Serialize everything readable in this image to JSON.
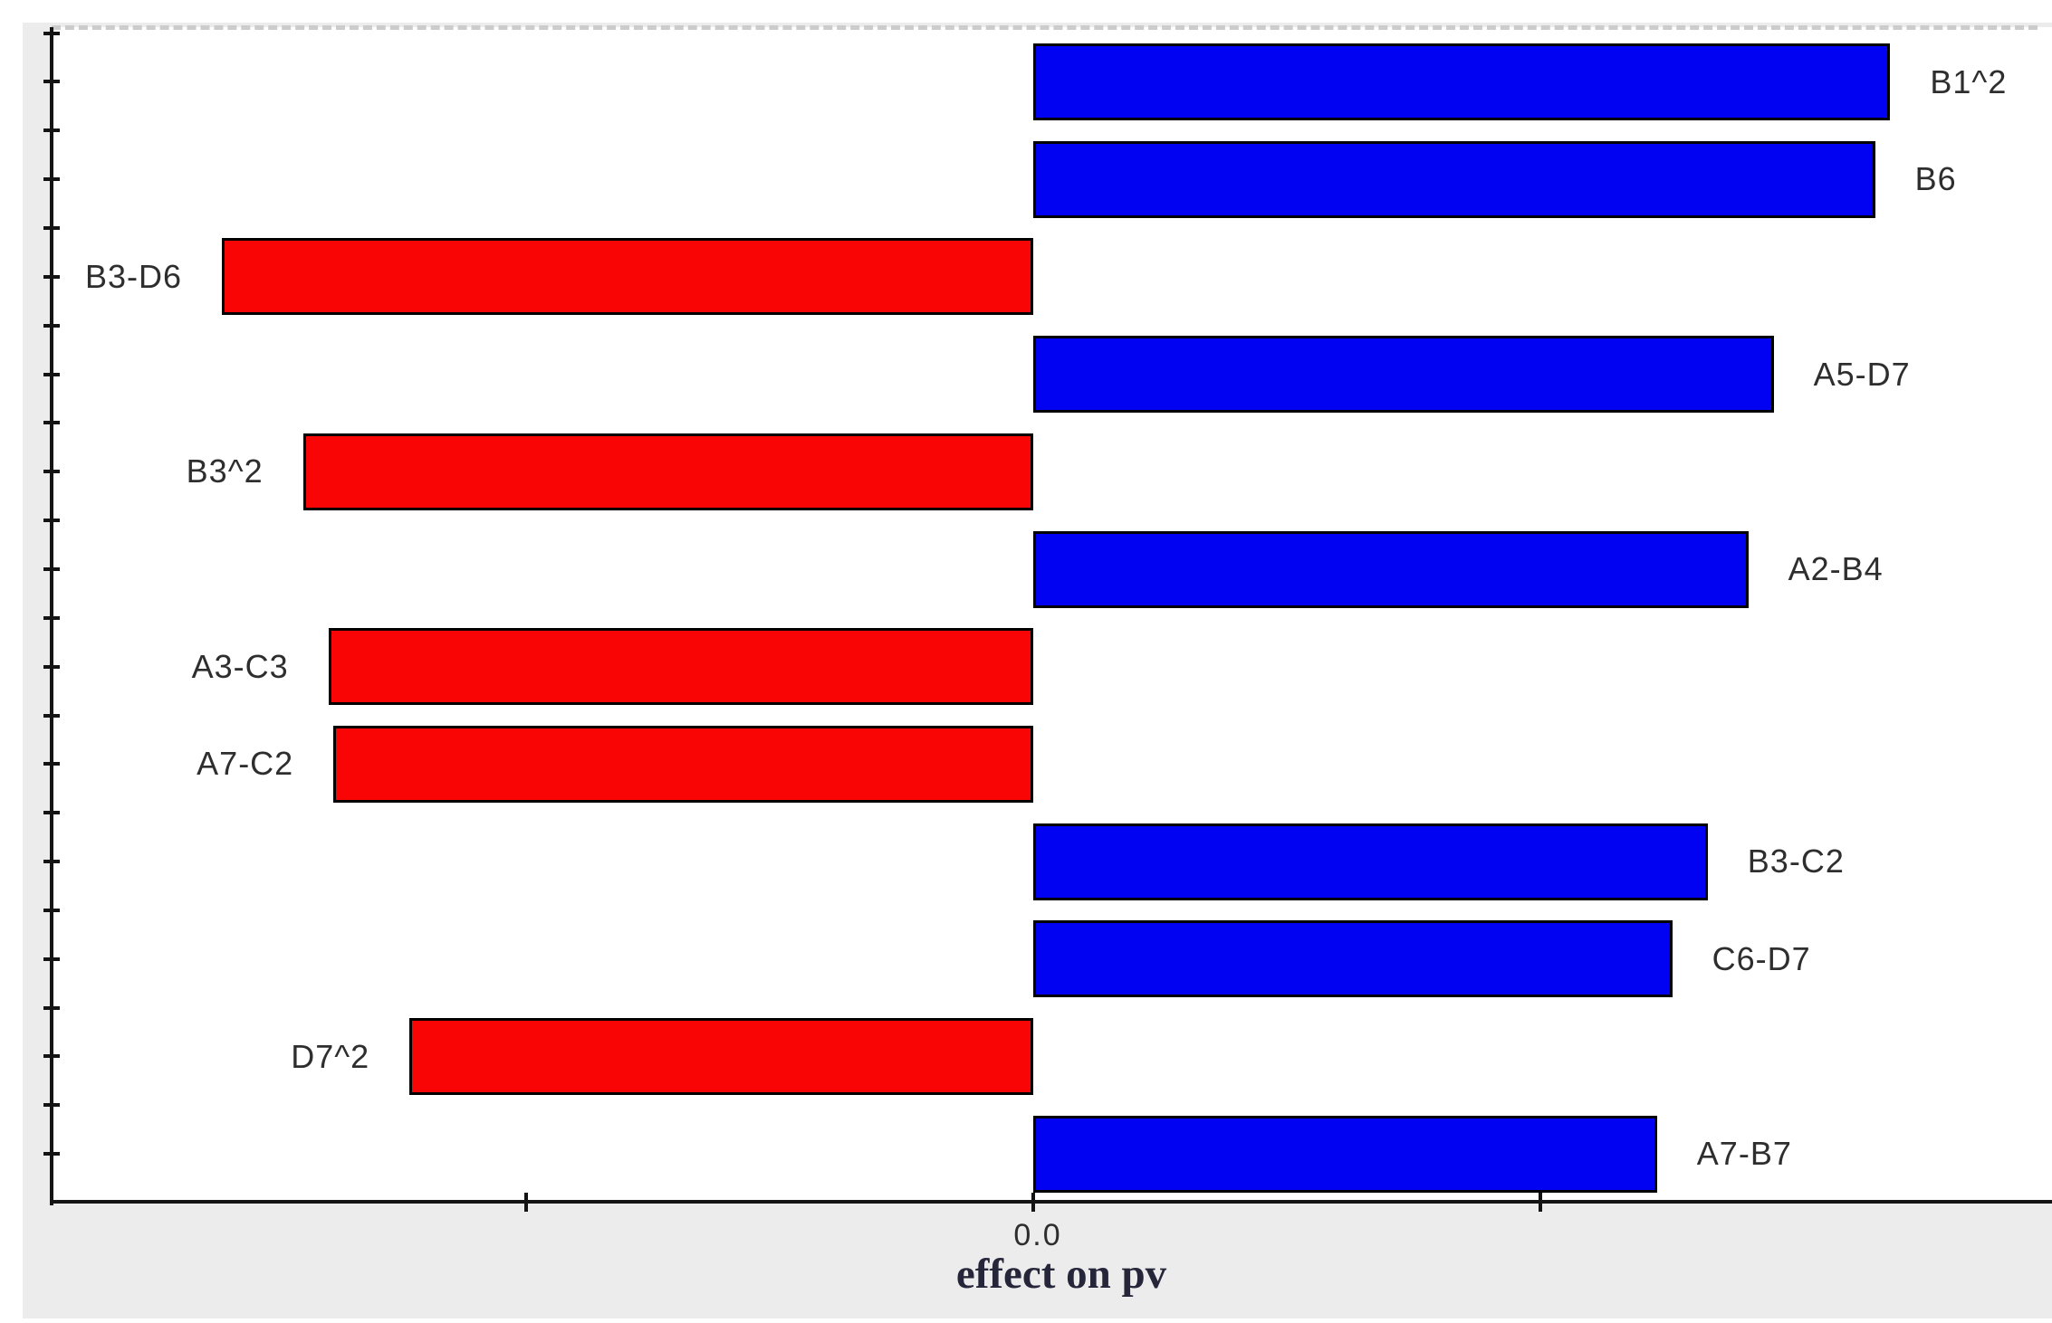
{
  "chart_data": {
    "type": "bar",
    "orientation": "horizontal",
    "title": "",
    "xlabel": "effect on pv",
    "ylabel": "",
    "x_tick_labels": [
      "0.0"
    ],
    "xlim": [
      -1.94,
      2.01
    ],
    "grid": false,
    "legend": null,
    "bars": [
      {
        "label": "B1^2",
        "value": 1.69,
        "color": "positive"
      },
      {
        "label": "B6",
        "value": 1.66,
        "color": "positive"
      },
      {
        "label": "B3-D6",
        "value": -1.6,
        "color": "negative"
      },
      {
        "label": "A5-D7",
        "value": 1.46,
        "color": "positive"
      },
      {
        "label": "B3^2",
        "value": -1.44,
        "color": "negative"
      },
      {
        "label": "A2-B4",
        "value": 1.41,
        "color": "positive"
      },
      {
        "label": "A3-C3",
        "value": -1.39,
        "color": "negative"
      },
      {
        "label": "A7-C2",
        "value": -1.38,
        "color": "negative"
      },
      {
        "label": "B3-C2",
        "value": 1.33,
        "color": "positive"
      },
      {
        "label": "C6-D7",
        "value": 1.26,
        "color": "positive"
      },
      {
        "label": "D7^2",
        "value": -1.23,
        "color": "negative"
      },
      {
        "label": "A7-B7",
        "value": 1.23,
        "color": "positive"
      }
    ],
    "colors": {
      "positive": "#0202f2",
      "negative": "#f90505",
      "bar_border": "#000000",
      "axis": "#141414"
    }
  }
}
